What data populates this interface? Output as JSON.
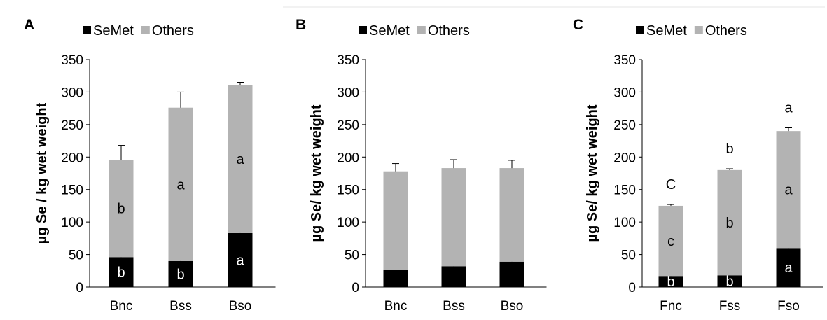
{
  "legend": {
    "items": [
      {
        "label": "SeMet",
        "color": "#000000"
      },
      {
        "label": "Others",
        "color": "#b3b3b3"
      }
    ]
  },
  "chart_data": [
    {
      "panel": "A",
      "type": "bar",
      "stacked": true,
      "ylabel": "µg Se / kg wet weight",
      "ylim": [
        0,
        350
      ],
      "yticks": [
        0,
        50,
        100,
        150,
        200,
        250,
        300,
        350
      ],
      "categories": [
        "Bnc",
        "Bss",
        "Bso"
      ],
      "series": [
        {
          "name": "SeMet",
          "color": "#000000",
          "values": [
            46,
            40,
            83
          ],
          "errors": [
            8,
            5,
            8
          ],
          "labels": [
            "b",
            "b",
            "a"
          ]
        },
        {
          "name": "Others",
          "color": "#b3b3b3",
          "values": [
            150,
            236,
            228
          ],
          "errors": [
            22,
            24,
            4
          ],
          "labels": [
            "b",
            "a",
            "a"
          ]
        }
      ],
      "total_labels": [
        "",
        "",
        ""
      ]
    },
    {
      "panel": "B",
      "type": "bar",
      "stacked": true,
      "ylabel": "µg Se/ kg wet weight",
      "ylim": [
        0,
        350
      ],
      "yticks": [
        0,
        50,
        100,
        150,
        200,
        250,
        300,
        350
      ],
      "categories": [
        "Bnc",
        "Bss",
        "Bso"
      ],
      "series": [
        {
          "name": "SeMet",
          "color": "#000000",
          "values": [
            26,
            32,
            39
          ],
          "errors": [
            12,
            12,
            18
          ],
          "labels": [
            "",
            "",
            ""
          ]
        },
        {
          "name": "Others",
          "color": "#b3b3b3",
          "values": [
            152,
            151,
            144
          ],
          "errors": [
            12,
            13,
            12
          ],
          "labels": [
            "",
            "",
            ""
          ]
        }
      ],
      "total_labels": [
        "",
        "",
        ""
      ]
    },
    {
      "panel": "C",
      "type": "bar",
      "stacked": true,
      "ylabel": "µg Se/ kg wet weight",
      "ylim": [
        0,
        350
      ],
      "yticks": [
        0,
        50,
        100,
        150,
        200,
        250,
        300,
        350
      ],
      "categories": [
        "Fnc",
        "Fss",
        "Fso"
      ],
      "series": [
        {
          "name": "SeMet",
          "color": "#000000",
          "values": [
            17,
            18,
            60
          ],
          "errors": [
            4,
            3,
            7
          ],
          "labels": [
            "b",
            "b",
            "a"
          ]
        },
        {
          "name": "Others",
          "color": "#b3b3b3",
          "values": [
            108,
            162,
            180
          ],
          "errors": [
            2,
            2,
            5
          ],
          "labels": [
            "c",
            "b",
            "a"
          ]
        }
      ],
      "total_labels": [
        "C",
        "b",
        "a"
      ]
    }
  ]
}
